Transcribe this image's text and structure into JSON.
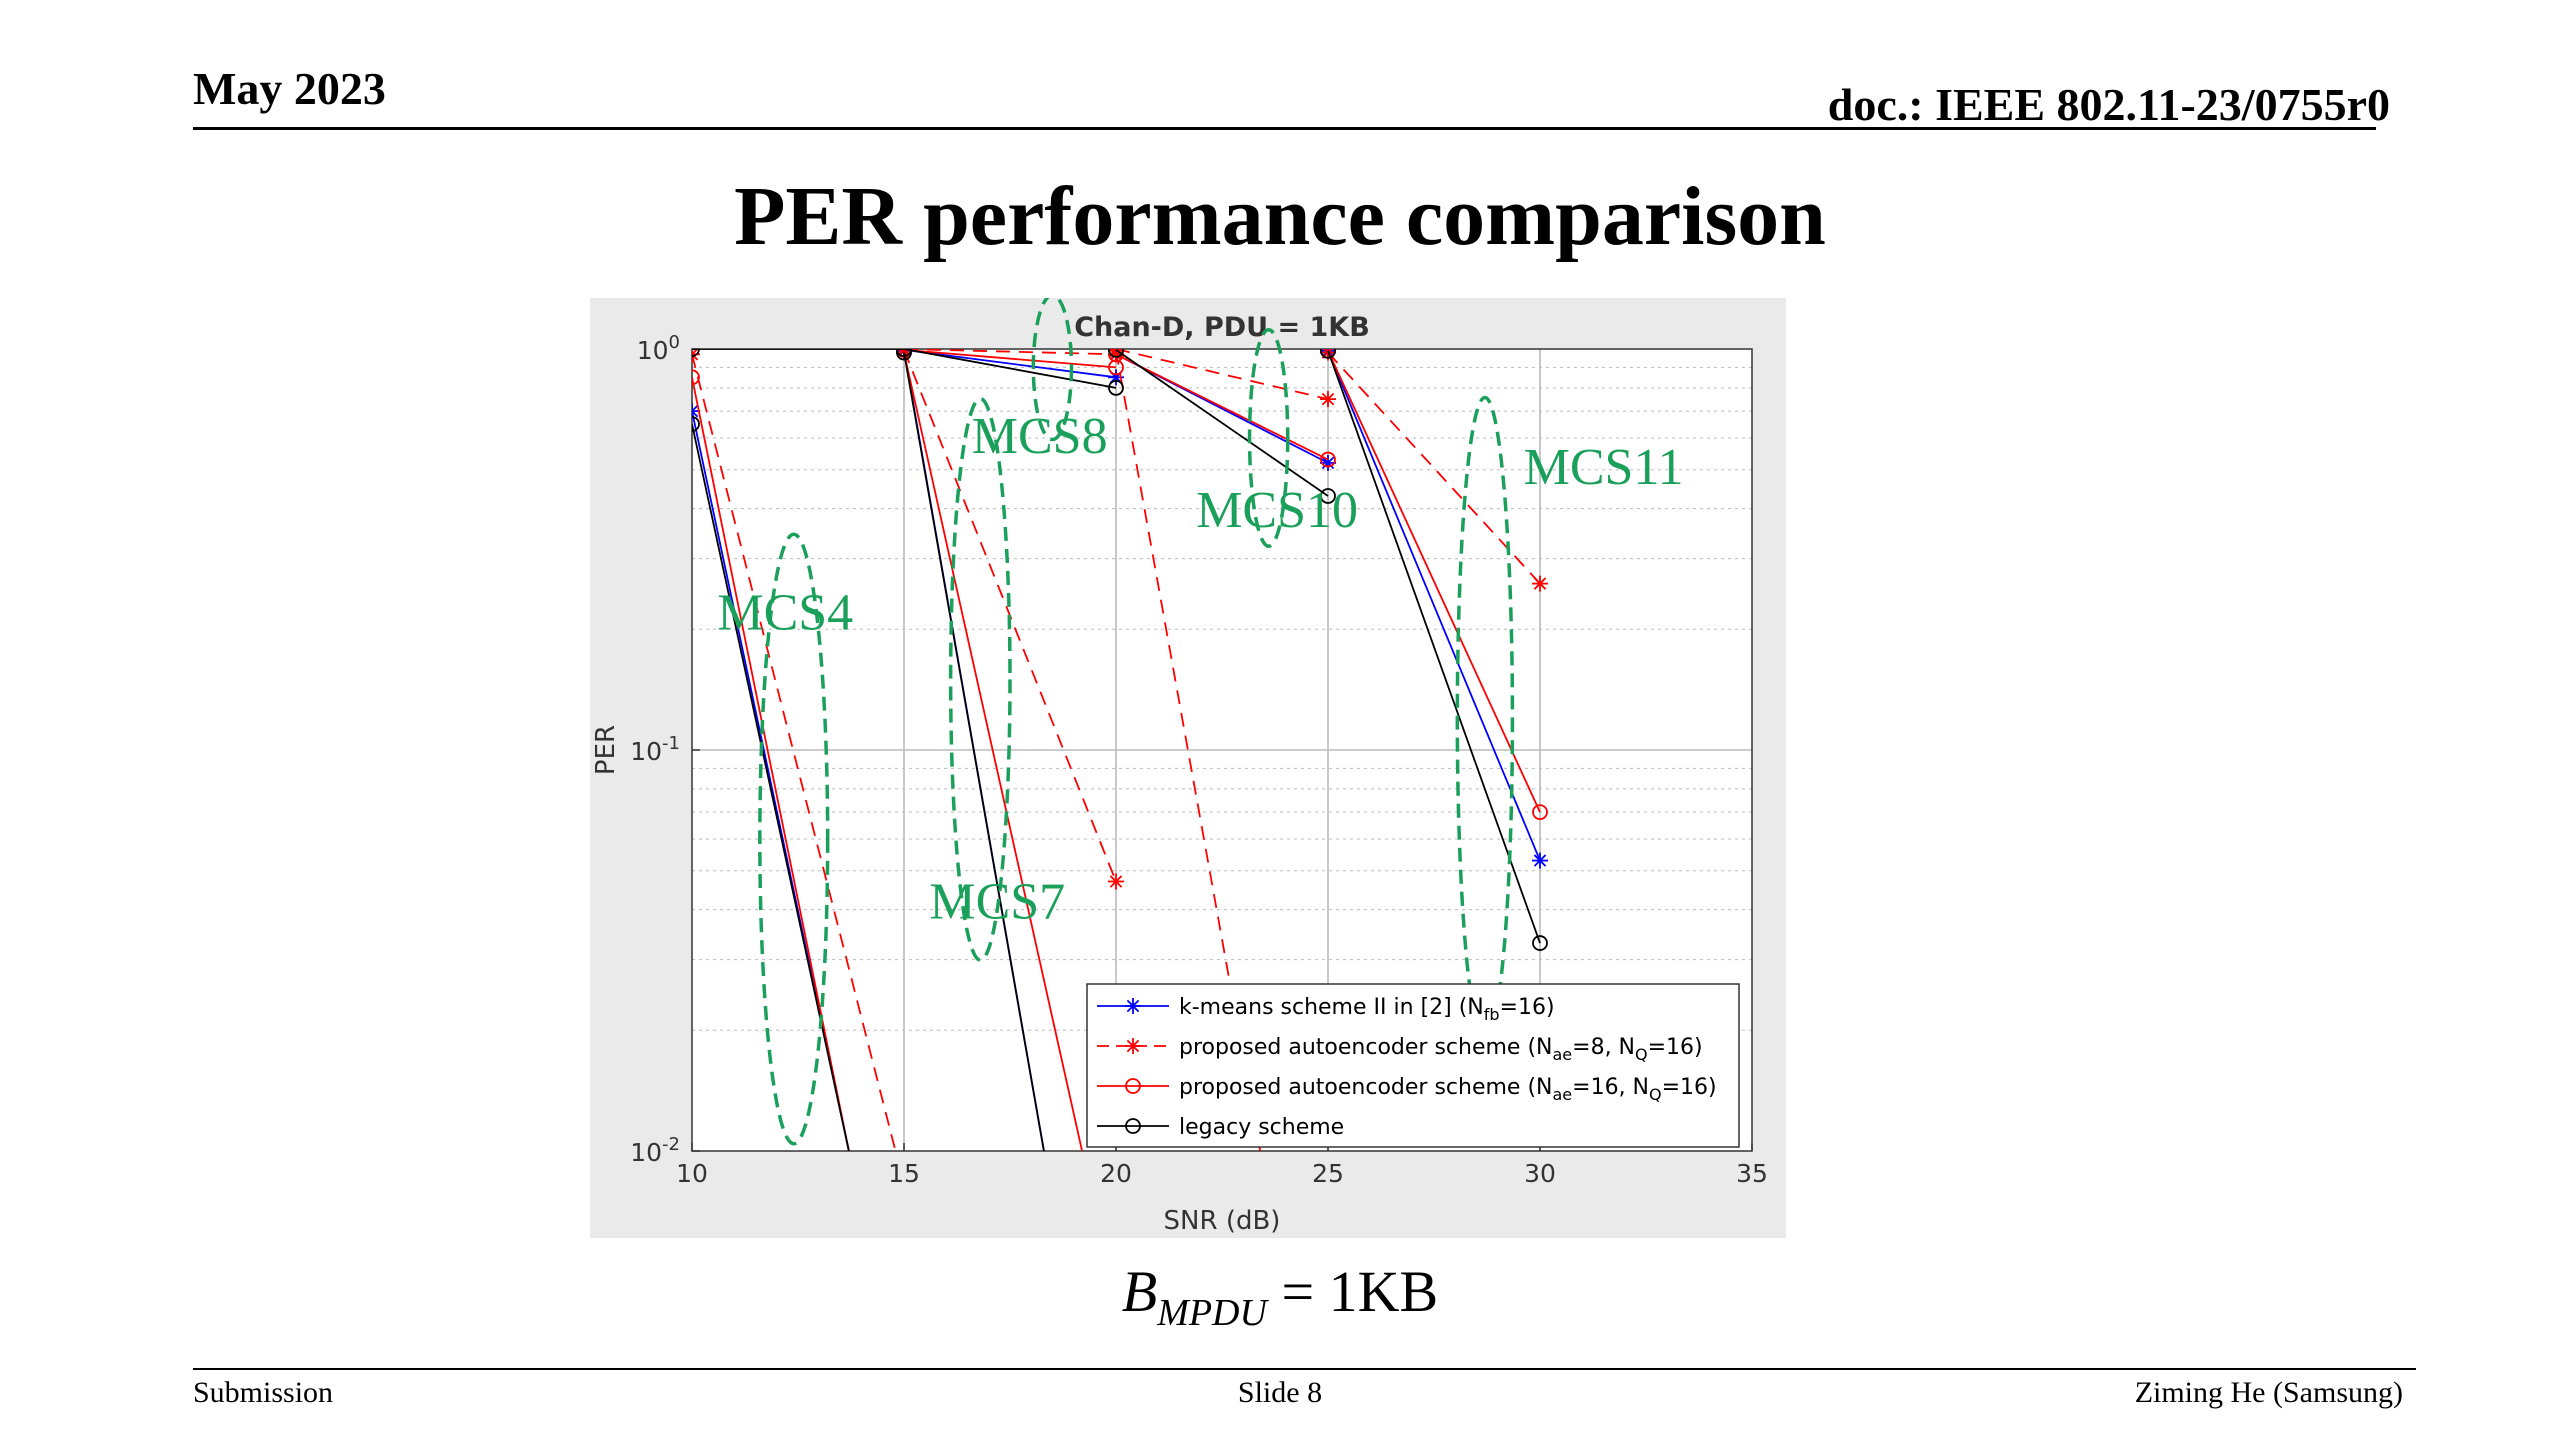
{
  "header": {
    "date": "May 2023",
    "doc": "doc.: IEEE 802.11-23/0755r0"
  },
  "slide_title": "PER performance comparison",
  "caption": {
    "sym": "B",
    "sub": "MPDU",
    "rest": " = 1KB"
  },
  "footer": {
    "left": "Submission",
    "center": "Slide 8",
    "right": "Ziming He (Samsung)"
  },
  "colors": {
    "kmeans": "#0000ff",
    "autoencoder": "#ff0000",
    "legacy": "#000000",
    "annotation": "#1aa05a"
  },
  "chart_data": {
    "type": "line",
    "title": "Chan-D, PDU = 1KB",
    "xlabel": "SNR (dB)",
    "ylabel": "PER",
    "xlim": [
      10,
      35
    ],
    "ylim": [
      0.01,
      1
    ],
    "yscale": "log",
    "xticks": [
      "10",
      "15",
      "20",
      "25",
      "30",
      "35"
    ],
    "yticks": [
      {
        "base": "10",
        "exp": "0",
        "value": 1
      },
      {
        "base": "10",
        "exp": "-1",
        "value": 0.1
      },
      {
        "base": "10",
        "exp": "-2",
        "value": 0.01
      }
    ],
    "grid": true,
    "legend_position": "bottom-right",
    "legend": [
      {
        "key": "kmeans",
        "text": "k-means scheme II in [2] (N",
        "sub": "fb",
        "tail": "=16)"
      },
      {
        "key": "ae8",
        "text": "proposed autoencoder scheme (N",
        "sub": "ae",
        "mid": "=8, N",
        "sub2": "Q",
        "tail": "=16)"
      },
      {
        "key": "ae16",
        "text": "proposed autoencoder scheme (N",
        "sub": "ae",
        "mid": "=16, N",
        "sub2": "Q",
        "tail": "=16)"
      },
      {
        "key": "legacy",
        "text": "legacy scheme"
      }
    ],
    "series": [
      {
        "key": "kmeans",
        "color": "#0000ff",
        "dash": false,
        "marker": "star",
        "segments": [
          [
            [
              10,
              0.7
            ],
            [
              13.7,
              0.01
            ]
          ],
          [
            [
              15,
              0.99
            ],
            [
              18.3,
              0.01
            ]
          ],
          [
            [
              15,
              0.995
            ],
            [
              20,
              0.85
            ]
          ],
          [
            [
              20,
              0.97
            ],
            [
              25,
              0.52
            ]
          ],
          [
            [
              25,
              0.99
            ],
            [
              30,
              0.053
            ]
          ]
        ]
      },
      {
        "key": "ae8",
        "color": "#ff0000",
        "dash": true,
        "marker": "star",
        "segments": [
          [
            [
              10,
              0.97
            ],
            [
              14.8,
              0.01
            ]
          ],
          [
            [
              15,
              0.995
            ],
            [
              20,
              0.047
            ]
          ],
          [
            [
              15,
              1.0
            ],
            [
              20,
              0.97
            ]
          ],
          [
            [
              20,
              0.99
            ],
            [
              23.4,
              0.01
            ]
          ],
          [
            [
              20,
              1.0
            ],
            [
              25,
              0.75
            ]
          ],
          [
            [
              25,
              0.98
            ],
            [
              30,
              0.26
            ]
          ]
        ]
      },
      {
        "key": "ae16",
        "color": "#ff0000",
        "dash": false,
        "marker": "circle",
        "segments": [
          [
            [
              10,
              0.85
            ],
            [
              13.7,
              0.01
            ]
          ],
          [
            [
              15,
              0.98
            ],
            [
              19.2,
              0.01
            ]
          ],
          [
            [
              15,
              0.995
            ],
            [
              20,
              0.9
            ]
          ],
          [
            [
              20,
              0.97
            ],
            [
              25,
              0.53
            ]
          ],
          [
            [
              25,
              0.99
            ],
            [
              30,
              0.07
            ]
          ]
        ]
      },
      {
        "key": "legacy",
        "color": "#000000",
        "dash": false,
        "marker": "circle",
        "segments": [
          [
            [
              10,
              0.65
            ],
            [
              13.7,
              0.01
            ]
          ],
          [
            [
              15,
              0.98
            ],
            [
              18.3,
              0.01
            ]
          ],
          [
            [
              10,
              1.0
            ],
            [
              15,
              1.0
            ],
            [
              20,
              0.8
            ]
          ],
          [
            [
              20,
              0.995
            ],
            [
              25,
              0.43
            ]
          ],
          [
            [
              25,
              0.99
            ],
            [
              30,
              0.033
            ]
          ]
        ]
      }
    ],
    "annotations": [
      {
        "label": "MCS4",
        "x": 12.2,
        "y": 0.2,
        "ex": 12.4,
        "ey": 0.06,
        "erx": 0.8,
        "ery": 0.76
      },
      {
        "label": "MCS7",
        "x": 17.2,
        "y": 0.038,
        "ex": 16.8,
        "ey": 0.15,
        "erx": 0.7,
        "ery": 0.7
      },
      {
        "label": "MCS8",
        "x": 18.2,
        "y": 0.55,
        "ex": 18.5,
        "ey": 0.9,
        "erx": 0.45,
        "ery": 0.18
      },
      {
        "label": "MCS10",
        "x": 23.8,
        "y": 0.36,
        "ex": 23.6,
        "ey": 0.6,
        "erx": 0.45,
        "ery": 0.27
      },
      {
        "label": "MCS11",
        "x": 31.5,
        "y": 0.46,
        "ex": 28.7,
        "ey": 0.12,
        "erx": 0.65,
        "ery": 0.8
      }
    ]
  }
}
